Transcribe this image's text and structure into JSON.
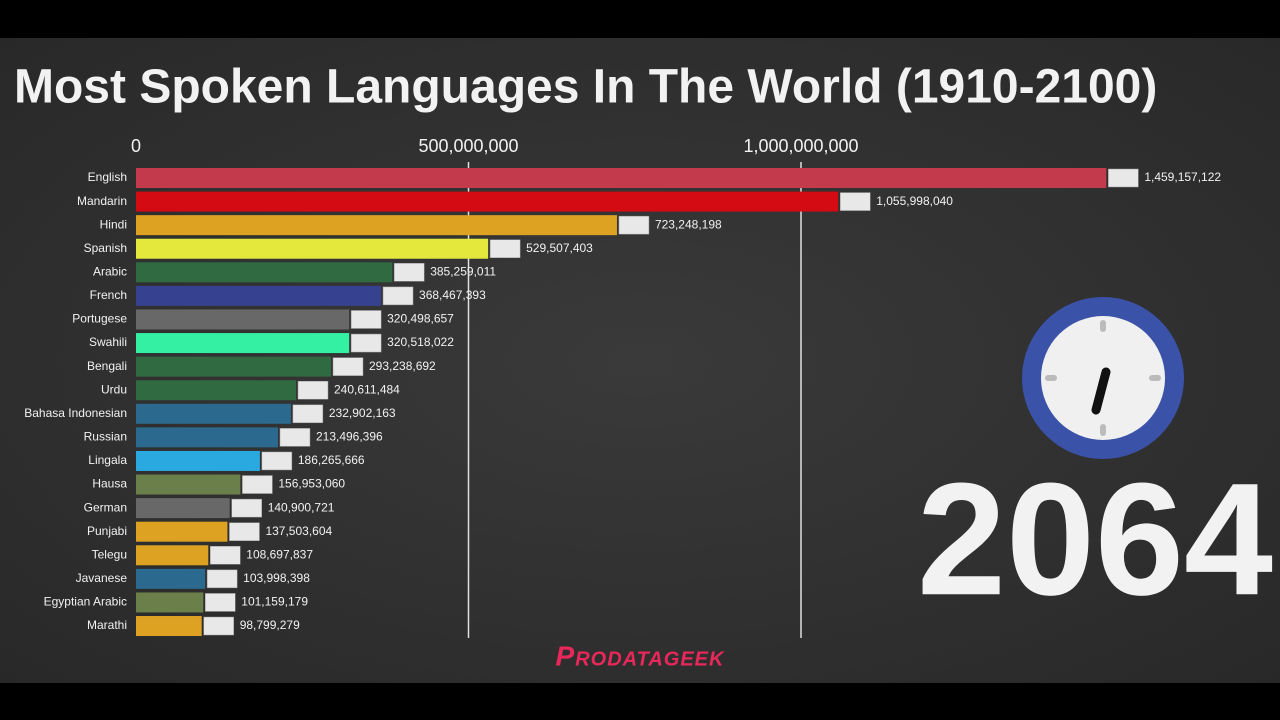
{
  "chart_data": {
    "type": "bar",
    "orientation": "horizontal",
    "title": "Most Spoken Languages In The World (1910-2100)",
    "year": "2064",
    "watermark": "Prodatageek",
    "categories": [
      "English",
      "Mandarin",
      "Hindi",
      "Spanish",
      "Arabic",
      "French",
      "Portugese",
      "Swahili",
      "Bengali",
      "Urdu",
      "Bahasa Indonesian",
      "Russian",
      "Lingala",
      "Hausa",
      "German",
      "Punjabi",
      "Telegu",
      "Javanese",
      "Egyptian Arabic",
      "Marathi"
    ],
    "values": [
      1459157122,
      1055998040,
      723248198,
      529507403,
      385259011,
      368467393,
      320498657,
      320518022,
      293238692,
      240611484,
      232902163,
      213496396,
      186265666,
      156953060,
      140900721,
      137503604,
      108697837,
      103998398,
      101159179,
      98799279
    ],
    "value_labels": [
      "1,459,157,122",
      "1,055,998,040",
      "723,248,198",
      "529,507,403",
      "385,259,011",
      "368,467,393",
      "320,498,657",
      "320,518,022",
      "293,238,692",
      "240,611,484",
      "232,902,163",
      "213,496,396",
      "186,265,666",
      "156,953,060",
      "140,900,721",
      "137,503,604",
      "108,697,837",
      "103,998,398",
      "101,159,179",
      "98,799,279"
    ],
    "colors": [
      "#c23a4b",
      "#d40b12",
      "#dea223",
      "#e4e83c",
      "#2f6a40",
      "#36418f",
      "#686868",
      "#34f0a2",
      "#2f6a40",
      "#2f6a40",
      "#2b6a8e",
      "#2b6a8e",
      "#2aa9e0",
      "#6b7f4b",
      "#686868",
      "#dea223",
      "#dea223",
      "#2b6a8e",
      "#6b7f4b",
      "#dea223"
    ],
    "xlim": [
      0,
      1500000000
    ],
    "xticks": [
      0,
      {
        "value": 500000000,
        "label": "500,000,000"
      },
      {
        "value": 1000000000,
        "label": "1,000,000,000"
      }
    ],
    "grid": true
  }
}
